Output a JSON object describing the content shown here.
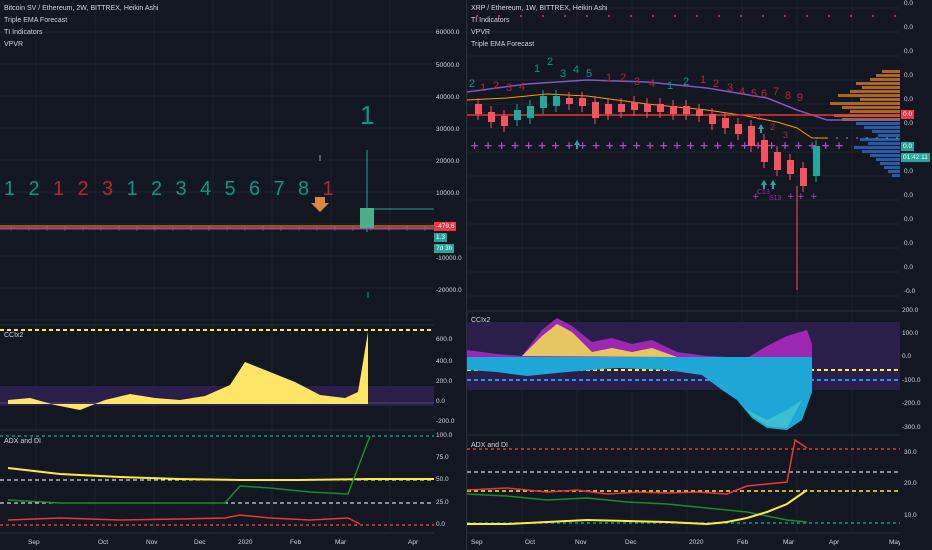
{
  "left": {
    "title": "Bitcoin SV / Ethereum, 2W, BITTREX, Heikin Ashi",
    "indicators": [
      "Triple EMA Forecast",
      "TI Indicators",
      "VPVR"
    ],
    "price_axis": [
      "60000.0",
      "50000.0",
      "40000.0",
      "30000.0",
      "20000.0",
      "10000.0",
      "-10000.0",
      "-20000.0"
    ],
    "price_tags": {
      "current": "-479.6",
      "green1": "1.3",
      "green2": "7d 3h"
    },
    "td_counts": [
      {
        "text": "1",
        "color": "#089981"
      },
      {
        "text": "2",
        "color": "#089981"
      },
      {
        "text": "1",
        "color": "#b22833"
      },
      {
        "text": "2",
        "color": "#b22833"
      },
      {
        "text": "3",
        "color": "#b22833"
      },
      {
        "text": "1",
        "color": "#089981"
      },
      {
        "text": "2",
        "color": "#089981"
      },
      {
        "text": "3",
        "color": "#089981"
      },
      {
        "text": "4",
        "color": "#089981"
      },
      {
        "text": "5",
        "color": "#089981"
      },
      {
        "text": "6",
        "color": "#089981"
      },
      {
        "text": "7",
        "color": "#089981"
      },
      {
        "text": "8",
        "color": "#089981"
      },
      {
        "text": "1",
        "color": "#b22833"
      }
    ],
    "td_big": "1",
    "ccix2": {
      "label": "CCIx2",
      "axis": [
        "600.0",
        "400.0",
        "200.0",
        "0.0",
        "-200.0"
      ]
    },
    "adx": {
      "label": "ADX and DI",
      "axis": [
        "100.0",
        "75.0",
        "50.0",
        "25.0",
        "0.0"
      ]
    },
    "time_axis": [
      "Sep",
      "Oct",
      "Nov",
      "Dec",
      "2020",
      "Feb",
      "Mar",
      "Apr"
    ]
  },
  "right": {
    "title": "XRP / Ethereum, 1W, BITTREX, Heikin Ashi",
    "indicators": [
      "TI Indicators",
      "VPVR",
      "Triple EMA Forecast"
    ],
    "price_axis": [
      "0.0",
      "0.0",
      "0.0",
      "0.0",
      "0.0",
      "0.0",
      "0.0",
      "0.0",
      "0.0",
      "0.0",
      "0.0",
      "0.0",
      "-0.0"
    ],
    "price_tags": {
      "red": "0.0",
      "green1": "0.0",
      "green2": "01:42:11"
    },
    "td_counts": [
      {
        "text": "2",
        "color": "#089981"
      },
      {
        "text": "1",
        "color": "#b22833"
      },
      {
        "text": "2",
        "color": "#b22833"
      },
      {
        "text": "3",
        "color": "#b22833"
      },
      {
        "text": "4",
        "color": "#b22833"
      },
      {
        "text": "1",
        "color": "#089981"
      },
      {
        "text": "2",
        "color": "#089981"
      },
      {
        "text": "3",
        "color": "#089981"
      },
      {
        "text": "4",
        "color": "#089981"
      },
      {
        "text": "5",
        "color": "#089981"
      },
      {
        "text": "1",
        "color": "#b22833"
      },
      {
        "text": "2",
        "color": "#b22833"
      },
      {
        "text": "3",
        "color": "#b22833"
      },
      {
        "text": "4",
        "color": "#b22833"
      },
      {
        "text": "1",
        "color": "#089981"
      },
      {
        "text": "2",
        "color": "#089981"
      },
      {
        "text": "1",
        "color": "#b22833"
      },
      {
        "text": "2",
        "color": "#b22833"
      },
      {
        "text": "3",
        "color": "#b22833"
      },
      {
        "text": "4",
        "color": "#b22833"
      },
      {
        "text": "5",
        "color": "#b22833"
      },
      {
        "text": "6",
        "color": "#b22833"
      },
      {
        "text": "7",
        "color": "#b22833"
      },
      {
        "text": "8",
        "color": "#b22833"
      },
      {
        "text": "9",
        "color": "#b22833"
      },
      {
        "text": "1",
        "color": "#b22833"
      },
      {
        "text": "2",
        "color": "#b22833"
      },
      {
        "text": "3",
        "color": "#b22833"
      }
    ],
    "markers": [
      "C13",
      "S13"
    ],
    "ccix2": {
      "label": "CCIx2",
      "axis": [
        "200.0",
        "100.0",
        "0.0",
        "-100.0",
        "-200.0",
        "-300.0"
      ]
    },
    "adx": {
      "label": "ADX and DI",
      "axis": [
        "30.0",
        "20.0",
        "10.0"
      ]
    },
    "time_axis": [
      "Sep",
      "Oct",
      "Nov",
      "Dec",
      "2020",
      "Feb",
      "Mar",
      "Apr",
      "May"
    ]
  }
}
